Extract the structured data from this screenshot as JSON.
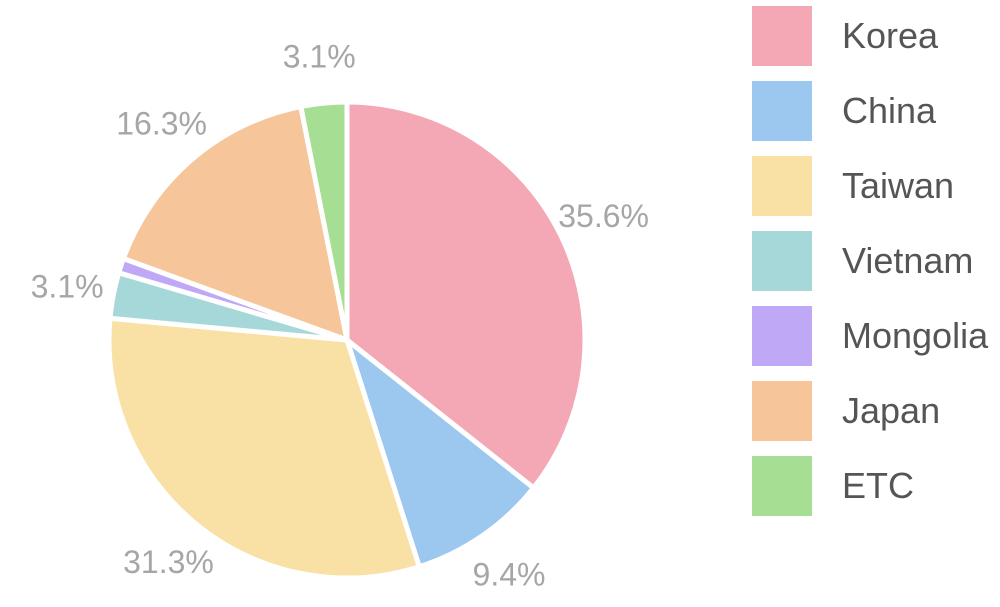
{
  "chart_data": {
    "type": "pie",
    "title": "",
    "legend_position": "right",
    "slices": [
      {
        "name": "Korea",
        "value": 35.6,
        "label": "35.6%",
        "color": "#f4a7b4"
      },
      {
        "name": "China",
        "value": 9.4,
        "label": "9.4%",
        "color": "#9cc7ef"
      },
      {
        "name": "Taiwan",
        "value": 31.3,
        "label": "31.3%",
        "color": "#f9e0a4"
      },
      {
        "name": "Vietnam",
        "value": 3.1,
        "label": "3.1%",
        "color": "#a7d8d9"
      },
      {
        "name": "Mongolia",
        "value": 1.0,
        "label": "",
        "color": "#bfa9f7"
      },
      {
        "name": "Japan",
        "value": 16.3,
        "label": "16.3%",
        "color": "#f6c59a"
      },
      {
        "name": "ETC",
        "value": 3.1,
        "label": "3.1%",
        "color": "#a6df93"
      }
    ]
  }
}
